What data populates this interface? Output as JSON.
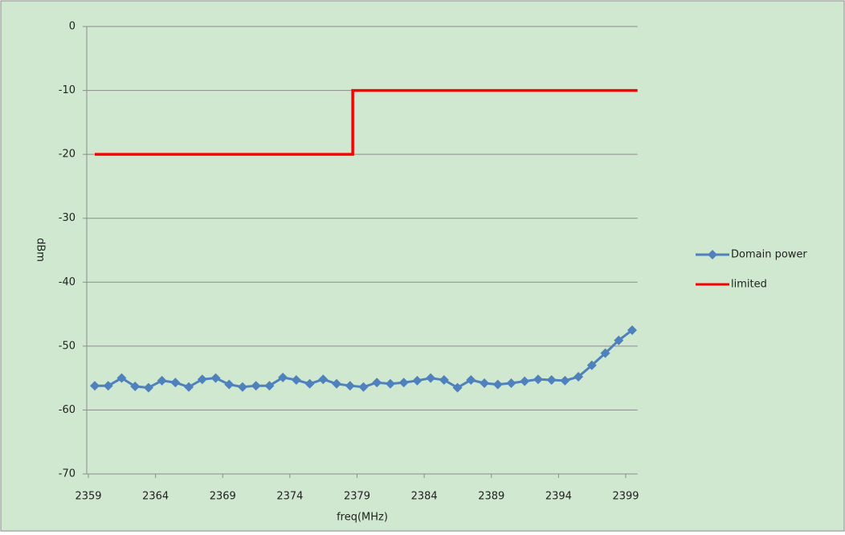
{
  "chart_data": {
    "type": "line",
    "xlabel": "freq(MHz)",
    "ylabel": "dBm",
    "xlim": [
      2359,
      2399.4
    ],
    "xticks": [
      2359,
      2364,
      2369,
      2374,
      2379,
      2384,
      2389,
      2394,
      2399
    ],
    "ylim": [
      -70,
      0
    ],
    "yticks": [
      0,
      -10,
      -20,
      -30,
      -40,
      -50,
      -60,
      -70
    ],
    "grid": true,
    "legend": "right",
    "series": [
      {
        "name": "Domain power",
        "color": "#4f81bd",
        "marker": "diamond",
        "x": [
          2359,
          2360,
          2361,
          2362,
          2363,
          2364,
          2365,
          2366,
          2367,
          2368,
          2369,
          2370,
          2371,
          2372,
          2373,
          2374,
          2375,
          2376,
          2377,
          2378,
          2379,
          2380,
          2381,
          2382,
          2383,
          2384,
          2385,
          2386,
          2387,
          2388,
          2389,
          2390,
          2391,
          2392,
          2393,
          2394,
          2395,
          2396,
          2397,
          2398,
          2399
        ],
        "values": [
          -56.2,
          -56.2,
          -55,
          -56.3,
          -56.5,
          -55.4,
          -55.7,
          -56.4,
          -55.2,
          -55,
          -56,
          -56.4,
          -56.2,
          -56.2,
          -54.9,
          -55.3,
          -55.9,
          -55.2,
          -55.9,
          -56.2,
          -56.4,
          -55.7,
          -55.9,
          -55.7,
          -55.4,
          -55,
          -55.3,
          -56.5,
          -55.3,
          -55.8,
          -56,
          -55.8,
          -55.5,
          -55.2,
          -55.3,
          -55.4,
          -54.8,
          -53,
          -51.1,
          -49.1,
          -47.5
        ]
      },
      {
        "name": "limited",
        "color": "#ff0000",
        "x": [
          2359,
          2378.2,
          2378.2,
          2399.4
        ],
        "values": [
          -20,
          -20,
          -10,
          -10
        ]
      }
    ]
  }
}
